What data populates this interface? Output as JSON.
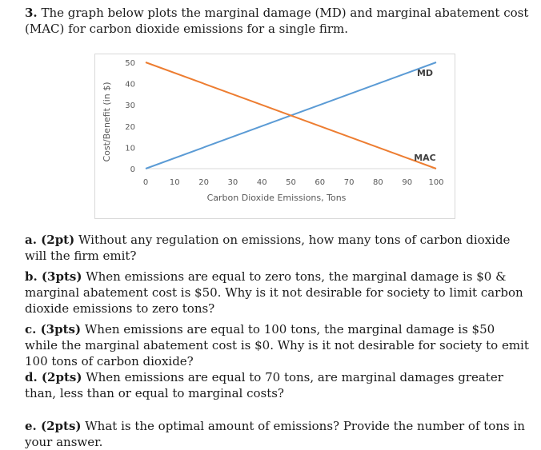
{
  "intro": {
    "number": "3.",
    "text": "The graph below plots the marginal damage (MD) and marginal abatement cost (MAC) for carbon dioxide emissions for a single firm."
  },
  "chart_data": {
    "type": "line",
    "title": "",
    "xlabel": "Carbon Dioxide Emissions, Tons",
    "ylabel": "Cost/Benefit (in $)",
    "xlim": [
      0,
      100
    ],
    "ylim": [
      0,
      50
    ],
    "x_ticks": [
      "0",
      "10",
      "20",
      "30",
      "40",
      "50",
      "60",
      "70",
      "80",
      "90",
      "100"
    ],
    "y_ticks": [
      "0",
      "10",
      "20",
      "30",
      "40",
      "50"
    ],
    "grid": false,
    "series": [
      {
        "name": "MD",
        "color": "#5b9bd5",
        "points": [
          [
            0,
            0
          ],
          [
            100,
            50
          ]
        ]
      },
      {
        "name": "MAC",
        "color": "#ed7d31",
        "points": [
          [
            0,
            50
          ],
          [
            100,
            0
          ]
        ]
      }
    ]
  },
  "questions": [
    {
      "label": "a. (2pt)",
      "text": "Without any regulation on emissions, how many tons of carbon dioxide will the firm emit?"
    },
    {
      "label": "b. (3pts)",
      "text": "When emissions are equal to zero tons, the marginal damage is $0 & marginal abatement cost is $50. Why is it not desirable for society to limit carbon dioxide emissions to zero tons?"
    },
    {
      "label": "c. (3pts)",
      "text": "When emissions are equal to 100 tons, the marginal damage is $50 while the marginal abatement cost is $0. Why is it not desirable for society to emit 100 tons of carbon dioxide?"
    },
    {
      "label": "d. (2pts)",
      "text": "When emissions are equal to 70 tons, are marginal damages greater than, less than or equal to marginal costs?"
    },
    {
      "label": "e. (2pts)",
      "text": "What is the optimal amount of emissions? Provide the number of tons in your answer."
    }
  ]
}
